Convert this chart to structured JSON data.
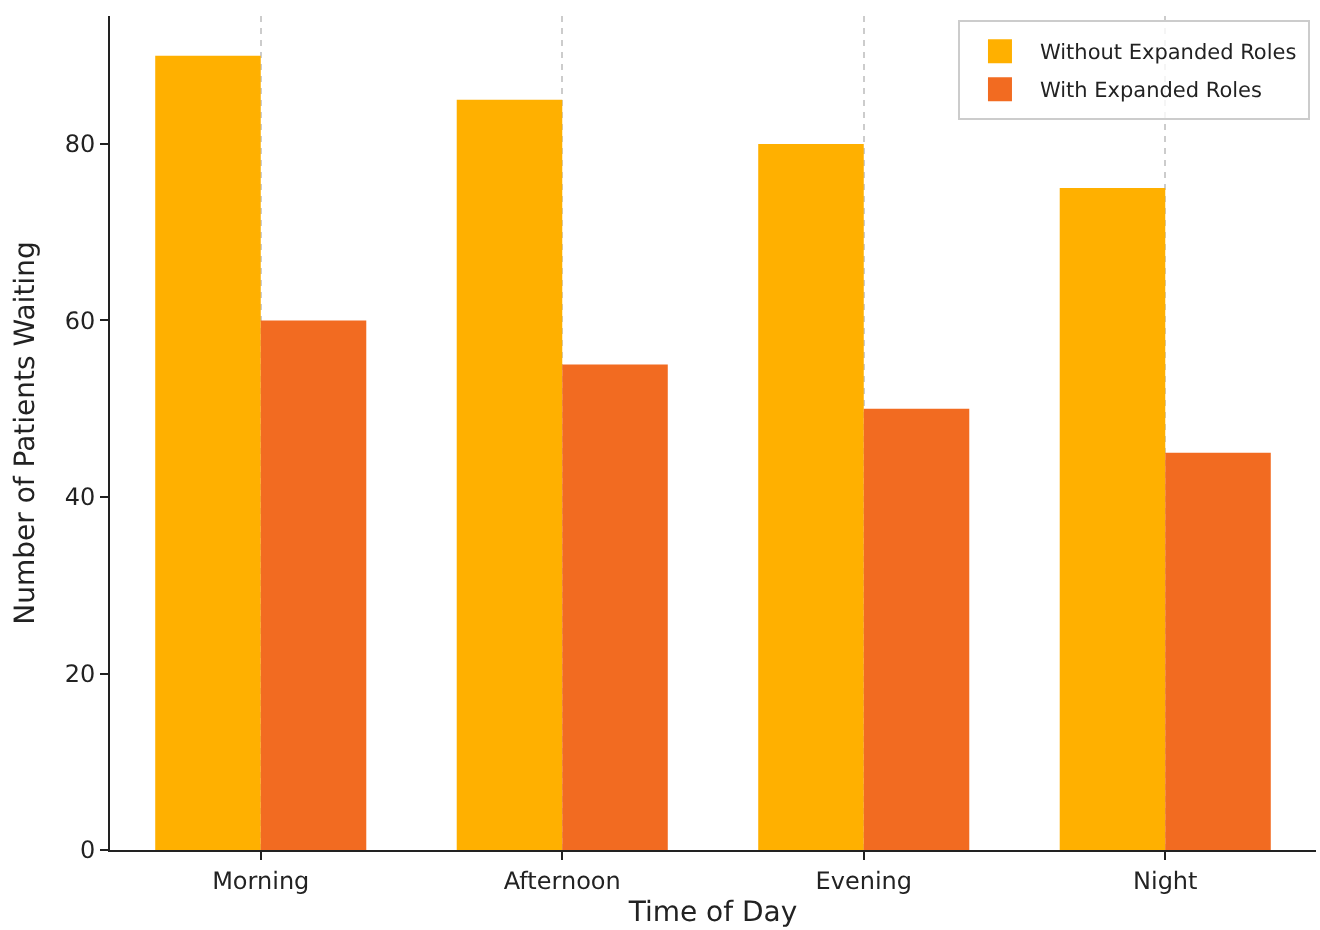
{
  "chart_data": {
    "type": "bar",
    "xlabel": "Time of Day",
    "ylabel": "Number of Patients Waiting",
    "categories": [
      "Morning",
      "Afternoon",
      "Evening",
      "Night"
    ],
    "series": [
      {
        "name": "Without Expanded Roles",
        "color": "#ffb000",
        "values": [
          90,
          85,
          80,
          75
        ]
      },
      {
        "name": "With Expanded Roles",
        "color": "#f26b21",
        "values": [
          60,
          55,
          50,
          45
        ]
      }
    ],
    "ylim": [
      0,
      94.5
    ],
    "yticks": [
      0,
      20,
      40,
      60,
      80
    ],
    "grid": "x",
    "legend": "top right"
  }
}
